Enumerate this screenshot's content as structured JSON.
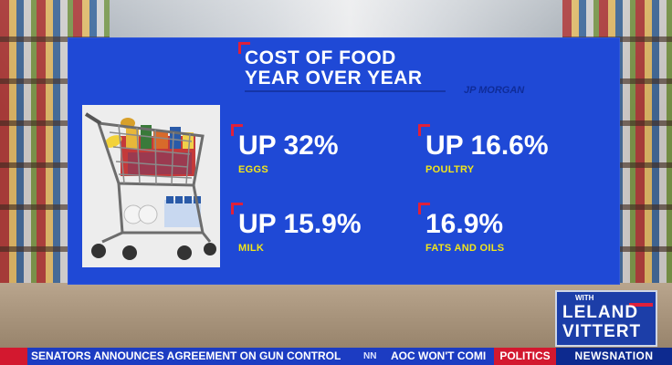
{
  "graphic": {
    "title_line1": "COST OF FOOD",
    "title_line2": "YEAR OVER YEAR",
    "source": "JP MORGAN",
    "stats": [
      {
        "value": "UP 32%",
        "label": "EGGS"
      },
      {
        "value": "UP 16.6%",
        "label": "POULTRY"
      },
      {
        "value": "UP 15.9%",
        "label": "MILK"
      },
      {
        "value": "16.9%",
        "label": "FATS AND OILS"
      }
    ]
  },
  "show_logo": {
    "with": "WITH",
    "name_first": "LELAND",
    "name_last": "VITTERT"
  },
  "ticker": {
    "headline1": "SENATORS ANNOUNCES AGREEMENT ON GUN CONTROL",
    "separator": "NN",
    "headline2": "AOC WON'T COMI",
    "section": "POLITICS",
    "brand": "NEWSNATION"
  },
  "colors": {
    "panel_blue": "#1f49d6",
    "accent_red": "#e0203a",
    "label_yellow": "#f2e51a",
    "ticker_blue": "#1c3cc2"
  }
}
